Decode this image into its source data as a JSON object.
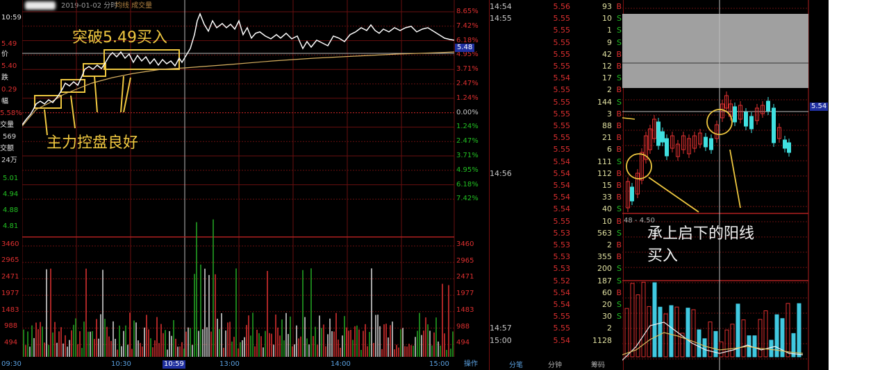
{
  "header": {
    "date_label": "2019-01-02 分时",
    "series_label": "均线 成交量"
  },
  "left_panel": {
    "time": "10:59",
    "price_label": "价",
    "price1": "5.49",
    "price2": "5.40",
    "change_label": "跌",
    "change_value": "0.29",
    "pct_label": "幅",
    "pct_value": "5.58%",
    "volume_label": "交量",
    "volume_value": "569",
    "amount_label": "交额",
    "amount_value": "24万",
    "ask_prices": [
      "5.01",
      "4.94",
      "4.88",
      "4.81"
    ],
    "vol_axis": [
      "3460",
      "2965",
      "2471",
      "1977",
      "1483",
      "988",
      "494"
    ]
  },
  "main_chart": {
    "right_prices": [
      "8.65%",
      "7.42%",
      "6.18%",
      "4.95%",
      "3.71%",
      "2.47%",
      "1.24%",
      "0.00%",
      "1.24%",
      "2.47%",
      "3.71%",
      "4.95%",
      "6.18%",
      "7.42%"
    ],
    "right_vol": [
      "3460",
      "2965",
      "2471",
      "1977",
      "1483",
      "988",
      "494"
    ],
    "current_price_tag": "5.48",
    "time_axis": [
      "09:30",
      "10:30",
      "10:59",
      "13:00",
      "14:00",
      "15:00"
    ],
    "bottom_tab": "操作"
  },
  "annotations": {
    "breakout": "突破5.49买入",
    "control": "主力控盘良好",
    "candle_line1": "承上启下的阳线",
    "candle_line2": "买入"
  },
  "ticks": [
    {
      "time": "14:54",
      "price": "5.56",
      "vol": "93",
      "dir": "B"
    },
    {
      "time": "14:55",
      "price": "5.55",
      "vol": "10",
      "dir": "S"
    },
    {
      "time": "",
      "price": "5.55",
      "vol": "1",
      "dir": "S"
    },
    {
      "time": "",
      "price": "5.55",
      "vol": "9",
      "dir": "S"
    },
    {
      "time": "",
      "price": "5.55",
      "vol": "42",
      "dir": "B"
    },
    {
      "time": "",
      "price": "5.55",
      "vol": "12",
      "dir": "B"
    },
    {
      "time": "",
      "price": "5.54",
      "vol": "17",
      "dir": "S"
    },
    {
      "time": "",
      "price": "5.55",
      "vol": "2",
      "dir": "B"
    },
    {
      "time": "",
      "price": "5.55",
      "vol": "144",
      "dir": "S"
    },
    {
      "time": "",
      "price": "5.55",
      "vol": "3",
      "dir": "B"
    },
    {
      "time": "",
      "price": "5.55",
      "vol": "88",
      "dir": "B"
    },
    {
      "time": "",
      "price": "5.55",
      "vol": "21",
      "dir": "B"
    },
    {
      "time": "",
      "price": "5.55",
      "vol": "6",
      "dir": "B"
    },
    {
      "time": "",
      "price": "5.54",
      "vol": "111",
      "dir": "S"
    },
    {
      "time": "14:56",
      "price": "5.54",
      "vol": "112",
      "dir": "B"
    },
    {
      "time": "",
      "price": "5.54",
      "vol": "15",
      "dir": "B"
    },
    {
      "time": "",
      "price": "5.54",
      "vol": "33",
      "dir": "B"
    },
    {
      "time": "",
      "price": "5.54",
      "vol": "40",
      "dir": "S"
    },
    {
      "time": "",
      "price": "5.55",
      "vol": "10",
      "dir": "B"
    },
    {
      "time": "",
      "price": "5.53",
      "vol": "563",
      "dir": "S"
    },
    {
      "time": "",
      "price": "5.53",
      "vol": "2",
      "dir": "B"
    },
    {
      "time": "",
      "price": "5.53",
      "vol": "355",
      "dir": "B"
    },
    {
      "time": "",
      "price": "5.53",
      "vol": "200",
      "dir": "S"
    },
    {
      "time": "",
      "price": "5.52",
      "vol": "187",
      "dir": "S"
    },
    {
      "time": "",
      "price": "5.54",
      "vol": "60",
      "dir": "B"
    },
    {
      "time": "",
      "price": "5.54",
      "vol": "20",
      "dir": "S"
    },
    {
      "time": "",
      "price": "5.55",
      "vol": "30",
      "dir": "S"
    },
    {
      "time": "14:57",
      "price": "5.55",
      "vol": "2",
      "dir": ""
    },
    {
      "time": "15:00",
      "price": "5.54",
      "vol": "1128",
      "dir": ""
    }
  ],
  "tick_tabs": [
    "分笔",
    "分钟",
    "筹码"
  ],
  "kline": {
    "price_tag": "5.54",
    "range_label": "48 - 4.50"
  },
  "chart_data": {
    "type": "line",
    "title": "",
    "x": [
      "09:30",
      "10:30",
      "10:59",
      "13:00",
      "14:00",
      "15:00"
    ],
    "series": [
      {
        "values": [
          5.12,
          5.33,
          5.48,
          5.6,
          5.52,
          5.54
        ]
      },
      {
        "values": [
          5.12,
          5.2,
          5.3,
          5.4,
          5.45,
          5.48
        ]
      }
    ],
    "ylim_pct": [
      -7.42,
      8.65
    ],
    "grid": true
  },
  "colors": {
    "up": "#e03030",
    "down": "#22c022",
    "annotation": "#f0c840",
    "price_line": "#ffffff",
    "avg_line": "#d8b060"
  }
}
